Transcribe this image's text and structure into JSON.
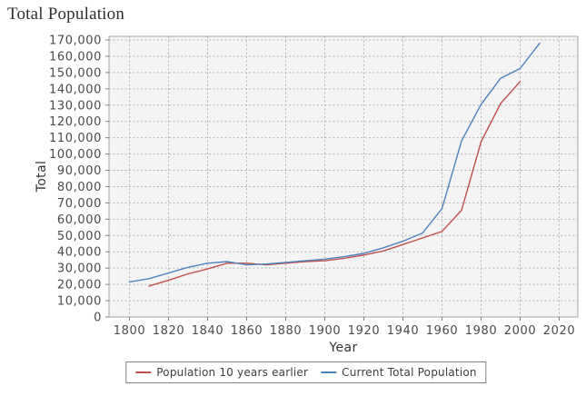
{
  "page": {
    "title": "Total Population"
  },
  "chart_data": {
    "type": "line",
    "title": "Total Population",
    "xlabel": "Year",
    "ylabel": "Total",
    "xlim": [
      1789,
      2028
    ],
    "ylim": [
      0,
      172000
    ],
    "x_ticks": [
      1800,
      1820,
      1840,
      1860,
      1880,
      1900,
      1920,
      1940,
      1960,
      1980,
      2000,
      2020
    ],
    "y_ticks": [
      0,
      10000,
      20000,
      30000,
      40000,
      50000,
      60000,
      70000,
      80000,
      90000,
      100000,
      110000,
      120000,
      130000,
      140000,
      150000,
      160000,
      170000
    ],
    "grid": "dashed-both-directions",
    "legend_position": "bottom-center",
    "colors": {
      "plot_bg": "#f4f4f5",
      "grid": "#b5b5b5",
      "frame": "#a3a3a3",
      "tick": "#7f7f7f",
      "series_red": "#c0504d",
      "series_blue": "#4f81bd"
    },
    "series": [
      {
        "name": "Population 10 years earlier",
        "color": "#c0504d",
        "x": [
          1810,
          1820,
          1830,
          1840,
          1850,
          1860,
          1870,
          1880,
          1890,
          1900,
          1910,
          1920,
          1930,
          1940,
          1950,
          1960,
          1970,
          1980,
          1990,
          2000
        ],
        "values": [
          19000,
          22500,
          26500,
          29500,
          33000,
          33000,
          32000,
          33000,
          34000,
          34500,
          36000,
          38000,
          40500,
          44500,
          48500,
          52500,
          65500,
          107500,
          131000,
          144500
        ]
      },
      {
        "name": "Current Total Population",
        "color": "#4f81bd",
        "x": [
          1800,
          1810,
          1820,
          1830,
          1840,
          1850,
          1860,
          1870,
          1880,
          1890,
          1900,
          1910,
          1920,
          1930,
          1940,
          1950,
          1960,
          1970,
          1980,
          1990,
          2000,
          2010
        ],
        "values": [
          21500,
          23500,
          27000,
          30500,
          33000,
          34000,
          32000,
          32500,
          33500,
          34500,
          35500,
          37000,
          39000,
          42500,
          46500,
          51500,
          66500,
          108000,
          130500,
          146500,
          152500,
          168000
        ]
      }
    ]
  }
}
